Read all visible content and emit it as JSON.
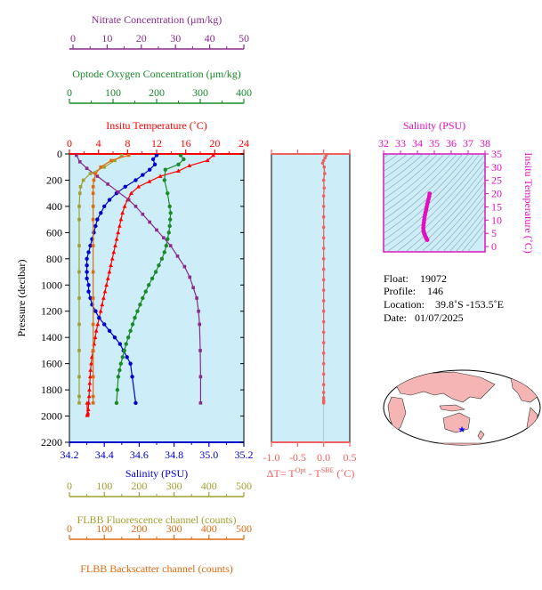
{
  "colors": {
    "nitrate": "#8b2a8b",
    "oxygen": "#1a8a2a",
    "temperature": "#ff0000",
    "salinity": "#0000cc",
    "fluorescence": "#a0a030",
    "backscatter": "#e06a10",
    "dt": "#f06060",
    "ts": "#e010c0",
    "panel_bg": "#cdeef8",
    "land": "#f5b5b5"
  },
  "info": {
    "float_label": "Float:",
    "float_value": "19072",
    "profile_label": "Profile:",
    "profile_value": "146",
    "location_label": "Location:",
    "location_value": "39.8˚S  -153.5˚E",
    "date_label": "Date:",
    "date_value": "01/07/2025"
  },
  "chart_data": [
    {
      "type": "line",
      "name": "profile",
      "ylabel": "Pressure (decibar)",
      "ylim": [
        2200,
        0
      ],
      "yticks": [
        "0",
        "200",
        "400",
        "600",
        "800",
        "1000",
        "1200",
        "1400",
        "1600",
        "1800",
        "2000",
        "2200"
      ],
      "axes": {
        "nitrate": {
          "label": "Nitrate Concentration (μm/kg)",
          "range": [
            0,
            50
          ],
          "ticks": [
            "0",
            "10",
            "20",
            "30",
            "40",
            "50"
          ]
        },
        "oxygen": {
          "label": "Optode Oxygen Concentration (μm/kg)",
          "range": [
            0,
            400
          ],
          "ticks": [
            "0",
            "100",
            "200",
            "300",
            "400"
          ]
        },
        "temperature": {
          "label": "Insitu Temperature (˚C)",
          "range": [
            0,
            24
          ],
          "ticks": [
            "0",
            "4",
            "8",
            "12",
            "16",
            "20",
            "24"
          ]
        },
        "salinity": {
          "label": "Salinity (PSU)",
          "range": [
            34.2,
            35.2
          ],
          "ticks": [
            "34.2",
            "34.4",
            "34.6",
            "34.8",
            "35.0",
            "35.2"
          ]
        },
        "fluorescence": {
          "label": "FLBB Fluorescence channel (counts)",
          "range": [
            0,
            500
          ],
          "ticks": [
            "0",
            "100",
            "200",
            "300",
            "400",
            "500"
          ]
        },
        "backscatter": {
          "label": "FLBB Backscatter channel (counts)",
          "range": [
            0,
            500
          ],
          "ticks": [
            "0",
            "100",
            "200",
            "300",
            "400",
            "500"
          ]
        }
      },
      "series": [
        {
          "key": "temperature",
          "axis": "temperature",
          "x": [
            19.8,
            19.0,
            16.5,
            15.0,
            12.5,
            11.0,
            9.5,
            8.5,
            8.0,
            7.6,
            7.3,
            7.1,
            6.9,
            6.7,
            6.5,
            6.3,
            6.1,
            5.9,
            5.7,
            5.5,
            5.3,
            5.1,
            4.9,
            4.7,
            4.5,
            4.3,
            4.1,
            3.9,
            3.7,
            3.55,
            3.4,
            3.25,
            3.1,
            3.0,
            2.9,
            2.85,
            2.8,
            2.75,
            2.7,
            2.65,
            2.6,
            2.55,
            2.5,
            2.48,
            2.46,
            2.44
          ],
          "y": [
            10,
            50,
            90,
            130,
            170,
            210,
            250,
            300,
            350,
            400,
            450,
            500,
            550,
            600,
            650,
            700,
            750,
            800,
            850,
            900,
            950,
            1000,
            1050,
            1100,
            1150,
            1200,
            1250,
            1300,
            1350,
            1400,
            1450,
            1500,
            1550,
            1600,
            1650,
            1700,
            1750,
            1800,
            1850,
            1900,
            1950,
            1975,
            1985,
            1990,
            1995,
            1900
          ]
        },
        {
          "key": "salinity",
          "axis": "salinity",
          "x": [
            34.7,
            34.68,
            34.69,
            34.66,
            34.62,
            34.58,
            34.52,
            34.47,
            34.43,
            34.4,
            34.38,
            34.36,
            34.35,
            34.34,
            34.33,
            34.32,
            34.31,
            34.3,
            34.3,
            34.3,
            34.3,
            34.31,
            34.31,
            34.32,
            34.33,
            34.35,
            34.37,
            34.4,
            34.43,
            34.46,
            34.49,
            34.51,
            34.53,
            34.55,
            34.56,
            34.58
          ],
          "y": [
            10,
            40,
            80,
            120,
            160,
            200,
            250,
            300,
            350,
            400,
            450,
            500,
            550,
            600,
            650,
            700,
            750,
            800,
            850,
            900,
            950,
            1000,
            1050,
            1100,
            1150,
            1200,
            1250,
            1300,
            1350,
            1400,
            1450,
            1500,
            1550,
            1600,
            1700,
            1900
          ]
        },
        {
          "key": "oxygen",
          "axis": "oxygen",
          "x": [
            255,
            262,
            250,
            220,
            218,
            225,
            230,
            232,
            231,
            230,
            228,
            225,
            222,
            218,
            212,
            205,
            198,
            190,
            182,
            175,
            168,
            162,
            156,
            150,
            145,
            140,
            135,
            130,
            126,
            122,
            118,
            115,
            112,
            110,
            108
          ],
          "y": [
            10,
            40,
            80,
            120,
            200,
            300,
            400,
            450,
            500,
            550,
            600,
            650,
            700,
            750,
            800,
            850,
            900,
            950,
            1000,
            1050,
            1100,
            1150,
            1200,
            1250,
            1300,
            1350,
            1400,
            1450,
            1500,
            1550,
            1600,
            1650,
            1700,
            1800,
            1900
          ]
        },
        {
          "key": "nitrate",
          "axis": "nitrate",
          "x": [
            2.0,
            3.0,
            5.0,
            8.0,
            11.0,
            14.0,
            17.0,
            19.0,
            21.0,
            23.0,
            25.0,
            27.0,
            29.0,
            31.0,
            33.0,
            34.5,
            35.5,
            36.5,
            37.0,
            37.3,
            37.5,
            37.6,
            37.6
          ],
          "y": [
            10,
            60,
            110,
            170,
            230,
            290,
            350,
            400,
            460,
            520,
            580,
            640,
            700,
            780,
            860,
            940,
            1020,
            1100,
            1200,
            1300,
            1500,
            1700,
            1900
          ]
        },
        {
          "key": "fluorescence",
          "axis": "fluorescence",
          "x": [
            150,
            130,
            100,
            60,
            40,
            32,
            30,
            28,
            28,
            28,
            28,
            28,
            28,
            28,
            28,
            28,
            28
          ],
          "y": [
            10,
            50,
            100,
            150,
            200,
            250,
            300,
            400,
            500,
            700,
            900,
            1100,
            1300,
            1500,
            1700,
            1850,
            1900
          ]
        },
        {
          "key": "backscatter",
          "axis": "backscatter",
          "x": [
            170,
            120,
            90,
            75,
            70,
            68,
            68,
            68,
            68,
            68,
            68,
            68,
            68,
            68,
            68,
            68,
            68
          ],
          "y": [
            10,
            50,
            100,
            150,
            200,
            250,
            300,
            400,
            500,
            700,
            900,
            1100,
            1300,
            1500,
            1700,
            1850,
            1900
          ]
        }
      ]
    },
    {
      "type": "line",
      "name": "dT",
      "xlabel_main": "ΔT= T",
      "xlabel_sup1": "Opt",
      "xlabel_mid": " - T",
      "xlabel_sup2": "SBE",
      "xlabel_end": " (˚C)",
      "xlim": [
        -1.0,
        0.5
      ],
      "xticks": [
        "-1.0",
        "-0.5",
        "0.0",
        "0.5"
      ],
      "series": [
        {
          "key": "dt",
          "x": [
            0.05,
            0.03,
            0.0,
            -0.02,
            0.01,
            0.02,
            0.0,
            0.01,
            0.0,
            0.0,
            0.0,
            0.0,
            0.0,
            0.0,
            0.0,
            0.0,
            0.0,
            0.0,
            0.0,
            0.0,
            0.0,
            0.0,
            0.0,
            0.0,
            0.0,
            0.0,
            0.0,
            0.0,
            0.0,
            0.0,
            0.0,
            0.0
          ],
          "y": [
            10,
            30,
            50,
            70,
            100,
            150,
            200,
            260,
            320,
            400,
            480,
            560,
            640,
            720,
            800,
            880,
            960,
            1040,
            1120,
            1200,
            1280,
            1360,
            1440,
            1520,
            1600,
            1680,
            1760,
            1820,
            1860,
            1880,
            1890,
            1900
          ]
        }
      ]
    },
    {
      "type": "scatter",
      "name": "ts",
      "xlabel": "Salinity (PSU)",
      "ylabel": "Insitu Temperature (˚C)",
      "xlim": [
        32,
        38
      ],
      "ylim": [
        -2,
        35
      ],
      "xticks": [
        "32",
        "33",
        "34",
        "35",
        "36",
        "37",
        "38"
      ],
      "yticks": [
        "0",
        "5",
        "10",
        "15",
        "20",
        "25",
        "30",
        "35"
      ],
      "points_x": [
        34.72,
        34.7,
        34.66,
        34.62,
        34.58,
        34.55,
        34.52,
        34.48,
        34.45,
        34.42,
        34.4,
        34.38,
        34.36,
        34.35,
        34.36,
        34.38,
        34.4,
        34.43,
        34.46,
        34.5,
        34.53,
        34.56,
        34.58
      ],
      "points_y": [
        20.0,
        19.0,
        18.0,
        17.0,
        16.0,
        15.0,
        14.0,
        13.0,
        12.0,
        11.0,
        10.0,
        9.0,
        8.0,
        7.0,
        6.0,
        5.5,
        5.0,
        4.5,
        4.0,
        3.5,
        3.0,
        2.7,
        2.5
      ]
    },
    {
      "type": "map",
      "name": "location",
      "marker": "★"
    }
  ]
}
